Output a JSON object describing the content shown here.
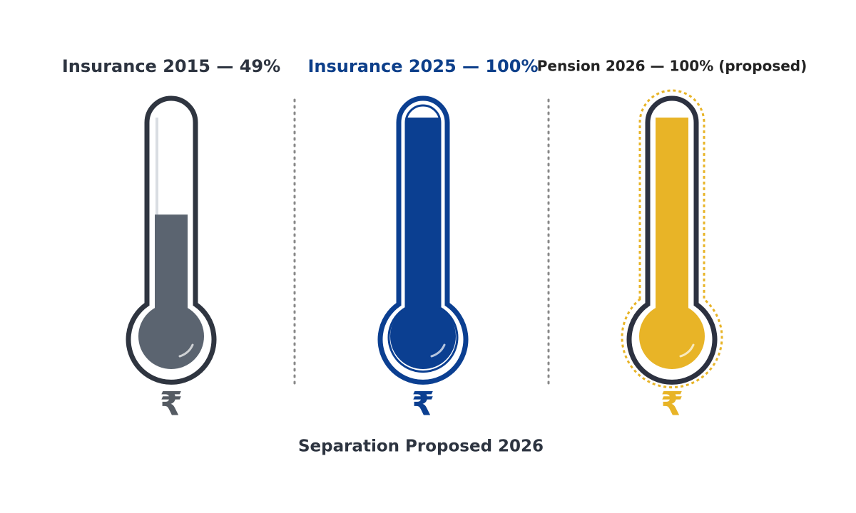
{
  "chart_data": {
    "type": "thermometer",
    "categories": [
      "Insurance 2015 — 49%",
      "Insurance 2025 — 100%",
      "Pension 2026 — 100% (proposed)"
    ],
    "values": [
      49,
      100,
      100
    ],
    "colors": [
      "#5b6470",
      "#0b3f91",
      "#e8b427"
    ],
    "outline_colors": [
      "#2f3540",
      "#0b3f91",
      "#2c3140"
    ],
    "title_colors": [
      "#2d3440",
      "#0d3f8a",
      "#222222"
    ],
    "outline_styles": [
      "solid",
      "solid",
      "dotted"
    ],
    "ylim": [
      0,
      100
    ],
    "symbol": "₹",
    "caption": "Separation Proposed 2026"
  }
}
